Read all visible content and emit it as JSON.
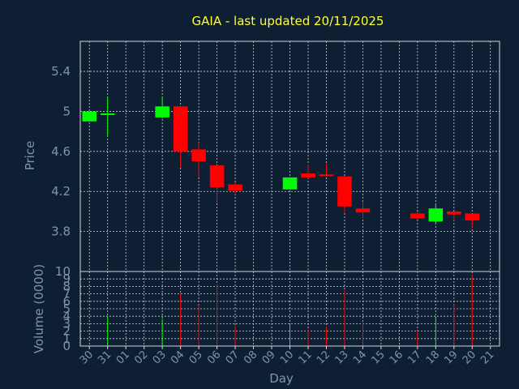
{
  "chart_data": {
    "type": "candlestick",
    "title": "GAIA - last updated 20/11/2025",
    "price_panel": {
      "ylabel": "Price",
      "ylim": [
        3.4,
        5.7
      ],
      "yticks": [
        "3.8",
        "4.2",
        "4.6",
        "5",
        "5.4"
      ],
      "ytick_values": [
        3.8,
        4.2,
        4.6,
        5.0,
        5.4
      ]
    },
    "volume_panel": {
      "ylabel": "Volume (0000)",
      "ylim": [
        0,
        10
      ],
      "yticks": [
        "0",
        "1",
        "2",
        "3",
        "4",
        "5",
        "6",
        "7",
        "8",
        "9",
        "10"
      ]
    },
    "xlabel": "Day",
    "x_ticks": [
      "30",
      "31",
      "01",
      "02",
      "03",
      "04",
      "05",
      "06",
      "07",
      "08",
      "09",
      "10",
      "11",
      "12",
      "13",
      "14",
      "15",
      "16",
      "17",
      "18",
      "19",
      "20",
      "21"
    ],
    "up_color": "#00ff00",
    "down_color": "#ff0000",
    "candles": [
      {
        "day": "30",
        "open": 4.9,
        "high": 5.0,
        "low": 4.9,
        "close": 5.0,
        "volume": 0
      },
      {
        "day": "31",
        "open": 4.97,
        "high": 5.15,
        "low": 4.75,
        "close": 4.98,
        "volume": 4.0
      },
      {
        "day": "03",
        "open": 4.94,
        "high": 5.14,
        "low": 4.93,
        "close": 5.05,
        "volume": 3.6
      },
      {
        "day": "04",
        "open": 5.05,
        "high": 5.05,
        "low": 4.44,
        "close": 4.6,
        "volume": 7.0
      },
      {
        "day": "05",
        "open": 4.62,
        "high": 4.69,
        "low": 4.34,
        "close": 4.5,
        "volume": 5.5
      },
      {
        "day": "06",
        "open": 4.46,
        "high": 4.46,
        "low": 4.08,
        "close": 4.24,
        "volume": 8.3
      },
      {
        "day": "07",
        "open": 4.27,
        "high": 4.29,
        "low": 4.17,
        "close": 4.21,
        "volume": 2.7
      },
      {
        "day": "10",
        "open": 4.22,
        "high": 4.34,
        "low": 4.22,
        "close": 4.34,
        "volume": 3.0
      },
      {
        "day": "11",
        "open": 4.38,
        "high": 4.47,
        "low": 4.33,
        "close": 4.34,
        "volume": 2.3
      },
      {
        "day": "12",
        "open": 4.37,
        "high": 4.48,
        "low": 4.35,
        "close": 4.36,
        "volume": 2.6
      },
      {
        "day": "13",
        "open": 4.35,
        "high": 4.35,
        "low": 3.98,
        "close": 4.05,
        "volume": 7.5
      },
      {
        "day": "14",
        "open": 4.03,
        "high": 4.1,
        "low": 3.93,
        "close": 3.99,
        "volume": 3.3
      },
      {
        "day": "17",
        "open": 3.98,
        "high": 4.0,
        "low": 3.92,
        "close": 3.93,
        "volume": 2.1
      },
      {
        "day": "18",
        "open": 3.9,
        "high": 4.08,
        "low": 3.88,
        "close": 4.03,
        "volume": 4.0
      },
      {
        "day": "19",
        "open": 4.0,
        "high": 4.0,
        "low": 3.91,
        "close": 3.97,
        "volume": 5.6
      },
      {
        "day": "20",
        "open": 3.98,
        "high": 3.98,
        "low": 3.83,
        "close": 3.91,
        "volume": 9.6
      }
    ]
  }
}
